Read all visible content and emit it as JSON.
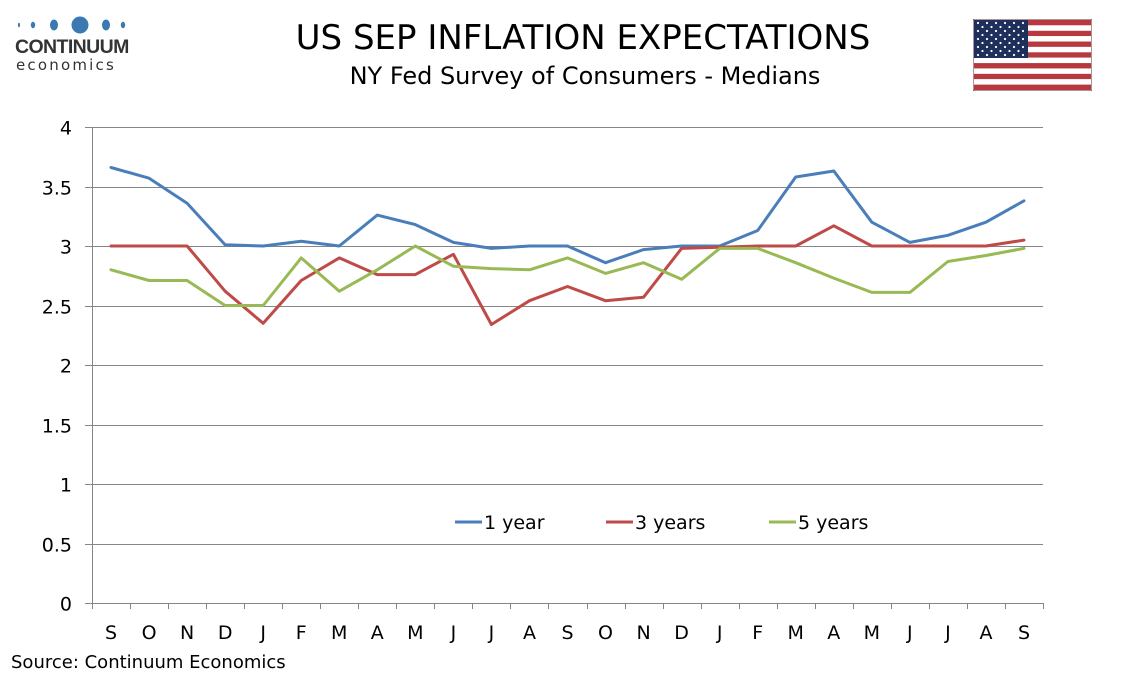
{
  "header": {
    "logo_word": "CONTINUUM",
    "logo_sub": "economics",
    "title": "US SEP INFLATION EXPECTATIONS",
    "subtitle": "NY Fed Survey of Consumers - Medians",
    "flag_icon": "us-flag-icon"
  },
  "footer": {
    "source": "Source: Continuum Economics"
  },
  "colors": {
    "series_1y": "#4a7ebb",
    "series_3y": "#be4b48",
    "series_5y": "#98b954",
    "grid": "#868686",
    "logo_blue": "#3a79b2"
  },
  "chart_data": {
    "type": "line",
    "title": "US SEP INFLATION EXPECTATIONS",
    "subtitle": "NY Fed Survey of Consumers - Medians",
    "xlabel": "",
    "ylabel": "",
    "ylim": [
      0,
      4
    ],
    "yticks": [
      "0",
      "0.5",
      "1",
      "1.5",
      "2",
      "2.5",
      "3",
      "3.5",
      "4"
    ],
    "ytick_values": [
      0,
      0.5,
      1,
      1.5,
      2,
      2.5,
      3,
      3.5,
      4
    ],
    "grid": true,
    "legend_position": "bottom-center-inside",
    "categories": [
      "S",
      "O",
      "N",
      "D",
      "J",
      "F",
      "M",
      "A",
      "M",
      "J",
      "J",
      "A",
      "S",
      "O",
      "N",
      "D",
      "J",
      "F",
      "M",
      "A",
      "M",
      "J",
      "J",
      "A",
      "S"
    ],
    "series": [
      {
        "name": "1 year",
        "color": "#4a7ebb",
        "values": [
          3.66,
          3.57,
          3.36,
          3.01,
          3.0,
          3.04,
          3.0,
          3.26,
          3.18,
          3.03,
          2.98,
          3.0,
          3.0,
          2.86,
          2.97,
          3.0,
          3.0,
          3.13,
          3.58,
          3.63,
          3.2,
          3.03,
          3.09,
          3.2,
          3.38
        ]
      },
      {
        "name": "3 years",
        "color": "#be4b48",
        "values": [
          3.0,
          3.0,
          3.0,
          2.62,
          2.35,
          2.71,
          2.9,
          2.76,
          2.76,
          2.93,
          2.34,
          2.54,
          2.66,
          2.54,
          2.57,
          2.98,
          2.99,
          3.0,
          3.0,
          3.17,
          3.0,
          3.0,
          3.0,
          3.0,
          3.05
        ]
      },
      {
        "name": "5 years",
        "color": "#98b954",
        "values": [
          2.8,
          2.71,
          2.71,
          2.5,
          2.5,
          2.9,
          2.62,
          2.8,
          3.0,
          2.83,
          2.81,
          2.8,
          2.9,
          2.77,
          2.86,
          2.72,
          2.98,
          2.98,
          2.86,
          2.73,
          2.61,
          2.61,
          2.87,
          2.92,
          2.98
        ]
      }
    ],
    "source": "Source: Continuum Economics"
  }
}
